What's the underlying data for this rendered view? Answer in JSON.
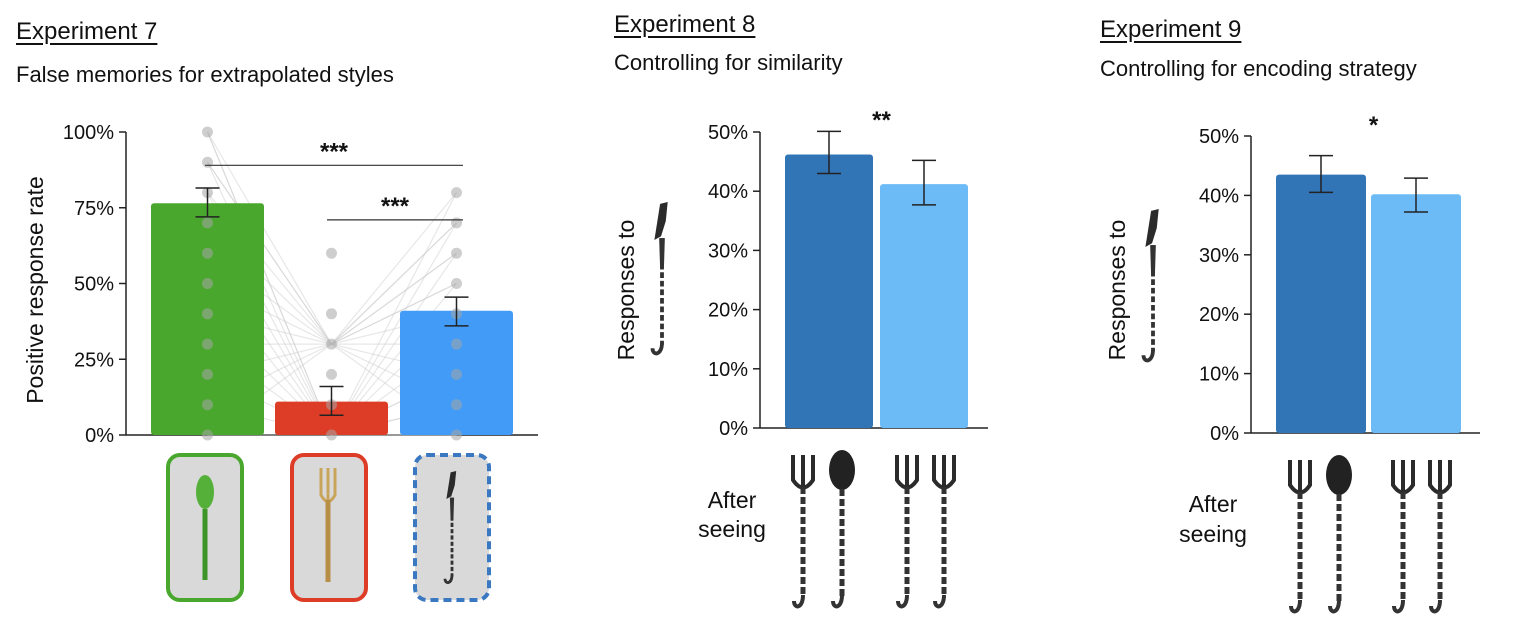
{
  "panels": [
    {
      "heading": "Experiment 7",
      "subtitle": "False memories for extrapolated styles"
    },
    {
      "heading": "Experiment 8",
      "subtitle": "Controlling for similarity"
    },
    {
      "heading": "Experiment 9",
      "subtitle": "Controlling for encoding strategy"
    }
  ],
  "after_seeing": [
    "After",
    "seeing"
  ],
  "chart_data": [
    {
      "type": "bar",
      "ylabel": "Positive response rate",
      "ylim": [
        0,
        1
      ],
      "yticks": [
        "0%",
        "25%",
        "50%",
        "75%",
        "100%"
      ],
      "categories": [
        "green spoon",
        "gold fork",
        "knife"
      ],
      "values": [
        0.765,
        0.11,
        0.41
      ],
      "errors": [
        [
          0.72,
          0.815
        ],
        [
          0.065,
          0.16
        ],
        [
          0.36,
          0.455
        ]
      ],
      "colors": [
        "#4aa72e",
        "#dd3d26",
        "#429cf7"
      ],
      "significance": [
        {
          "from": 0,
          "to": 2,
          "y": 0.89,
          "label": "***"
        },
        {
          "from": 1,
          "to": 2,
          "y": 0.71,
          "label": "***"
        }
      ],
      "individual_points": [
        [
          1.0,
          0.9,
          0.8,
          0.7,
          0.6,
          0.5,
          0.4,
          0.3,
          0.2,
          0.1,
          0.0
        ],
        [
          0.0,
          0.1,
          0.2,
          0.3,
          0.4,
          0.6
        ],
        [
          0.0,
          0.1,
          0.2,
          0.3,
          0.4,
          0.5,
          0.6,
          0.7,
          0.8
        ]
      ]
    },
    {
      "type": "bar",
      "ylabel": "Responses to",
      "ylim": [
        0,
        0.5
      ],
      "yticks": [
        "0%",
        "10%",
        "20%",
        "30%",
        "40%",
        "50%"
      ],
      "values": [
        0.462,
        0.412
      ],
      "errors": [
        [
          0.43,
          0.501
        ],
        [
          0.377,
          0.452
        ]
      ],
      "colors": [
        "#3275b7",
        "#6cbbf7"
      ],
      "significance": [
        {
          "label": "**"
        }
      ]
    },
    {
      "type": "bar",
      "ylabel": "Responses to",
      "ylim": [
        0,
        0.5
      ],
      "yticks": [
        "0%",
        "10%",
        "20%",
        "30%",
        "40%",
        "50%"
      ],
      "values": [
        0.435,
        0.402
      ],
      "errors": [
        [
          0.405,
          0.467
        ],
        [
          0.372,
          0.429
        ]
      ],
      "colors": [
        "#3275b7",
        "#6cbbf7"
      ],
      "significance": [
        {
          "label": "*"
        }
      ]
    }
  ],
  "stimulus_frames": [
    {
      "name": "green spoon",
      "border": "#4aa72e",
      "dashed": false
    },
    {
      "name": "gold fork",
      "border": "#dd3d26",
      "dashed": false
    },
    {
      "name": "knife",
      "border": "#3a78c2",
      "dashed": true
    }
  ]
}
